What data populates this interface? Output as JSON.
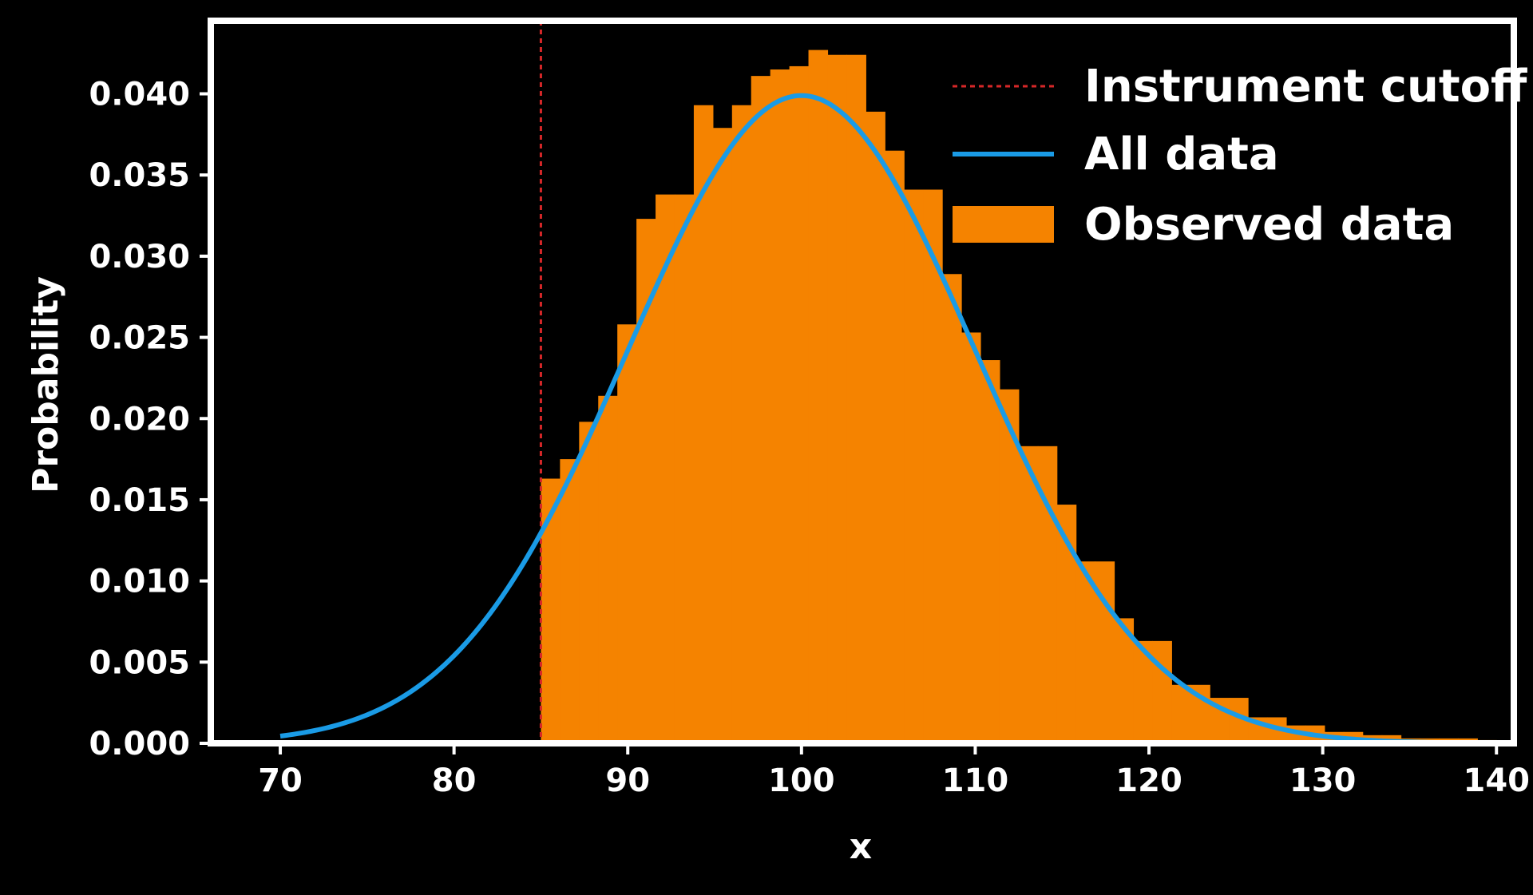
{
  "chart_data": {
    "type": "bar",
    "xlabel": "x",
    "ylabel": "Probability",
    "xlim": [
      66,
      141
    ],
    "ylim": [
      0,
      0.0445
    ],
    "xticks": [
      70,
      80,
      90,
      100,
      110,
      120,
      130,
      140
    ],
    "yticks": [
      0.0,
      0.005,
      0.01,
      0.015,
      0.02,
      0.025,
      0.03,
      0.035,
      0.04
    ],
    "ytick_labels": [
      "0.000",
      "0.005",
      "0.010",
      "0.015",
      "0.020",
      "0.025",
      "0.030",
      "0.035",
      "0.040"
    ],
    "grid": false,
    "legend_position": "top-right",
    "cutoff": {
      "name": "Instrument cutoff",
      "x": 85,
      "color": "#d62728"
    },
    "curve": {
      "name": "All data",
      "color": "#1a9be6",
      "mean": 100,
      "std": 10,
      "x_range": [
        70,
        140
      ]
    },
    "histogram": {
      "name": "Observed data",
      "color": "#f58300",
      "bin_edges": [
        85,
        86.1,
        87.2,
        88.3,
        89.4,
        90.5,
        91.6,
        92.7,
        93.8,
        94.9,
        96.0,
        97.1,
        98.2,
        99.3,
        100.4,
        101.5,
        102.6,
        103.7,
        104.8,
        105.9,
        107.0,
        108.1,
        109.2,
        110.3,
        111.4,
        112.5,
        113.6,
        114.7,
        115.8,
        116.9,
        118.0,
        119.1,
        120.2,
        121.3,
        122.4,
        123.5,
        124.6,
        125.7,
        126.8,
        127.9,
        129.0,
        130.1,
        131.2,
        132.3,
        133.4,
        134.5,
        135.6,
        136.7,
        137.8,
        138.9,
        140.0
      ],
      "heights": [
        0.0163,
        0.0175,
        0.0198,
        0.0214,
        0.0258,
        0.0323,
        0.0338,
        0.0338,
        0.0393,
        0.0379,
        0.0393,
        0.0411,
        0.0415,
        0.0417,
        0.0427,
        0.0424,
        0.0424,
        0.0389,
        0.0365,
        0.0341,
        0.0341,
        0.0289,
        0.0253,
        0.0236,
        0.0218,
        0.0183,
        0.0183,
        0.0147,
        0.0112,
        0.0112,
        0.0077,
        0.0063,
        0.0063,
        0.0036,
        0.0036,
        0.0028,
        0.0028,
        0.0016,
        0.0016,
        0.0011,
        0.0011,
        0.0007,
        0.0007,
        0.0005,
        0.0005,
        0.0003,
        0.0003,
        0.0003,
        0.0003,
        0.0002
      ]
    }
  }
}
